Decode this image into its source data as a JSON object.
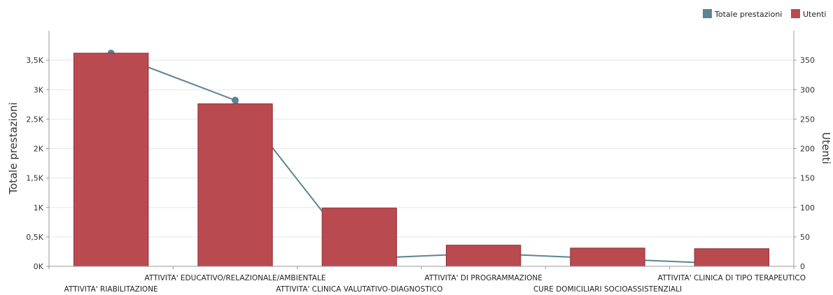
{
  "chart_data": {
    "type": "bar",
    "categories": [
      "ATTIVITA' RIABILITAZIONE",
      "ATTIVITA' EDUCATIVO/RELAZIONALE/AMBIENTALE",
      "ATTIVITA' CLINICA VALUTATIVO-DIAGNOSTICO",
      "ATTIVITA' DI PROGRAMMAZIONE",
      "CURE DOMICILIARI SOCIOASSISTENZIALI",
      "ATTIVITA' CLINICA DI TIPO TERAPEUTICO"
    ],
    "series": [
      {
        "name": "Totale prestazioni",
        "type": "line",
        "axis": "left",
        "color": "#5b8594",
        "values": [
          3620,
          2820,
          130,
          220,
          130,
          40
        ]
      },
      {
        "name": "Utenti",
        "type": "bar",
        "axis": "right",
        "color": "#b94a50",
        "values": [
          362,
          276,
          99,
          36,
          31,
          30
        ]
      }
    ],
    "ylabel": "Totale prestazioni",
    "y2label": "Utenti",
    "ylim": [
      0,
      4000
    ],
    "y2lim": [
      0,
      400
    ],
    "yticks": [
      0,
      500,
      1000,
      1500,
      2000,
      2500,
      3000,
      3500
    ],
    "ytick_labels": [
      "0K",
      "0,5K",
      "1K",
      "1,5K",
      "2K",
      "2,5K",
      "3K",
      "3,5K"
    ],
    "y2ticks": [
      0,
      50,
      100,
      150,
      200,
      250,
      300,
      350
    ],
    "y2tick_labels": [
      "0",
      "50",
      "100",
      "150",
      "200",
      "250",
      "300",
      "350"
    ],
    "legend": {
      "position": "top-right",
      "entries": [
        "Totale prestazioni",
        "Utenti"
      ]
    },
    "grid": true
  }
}
